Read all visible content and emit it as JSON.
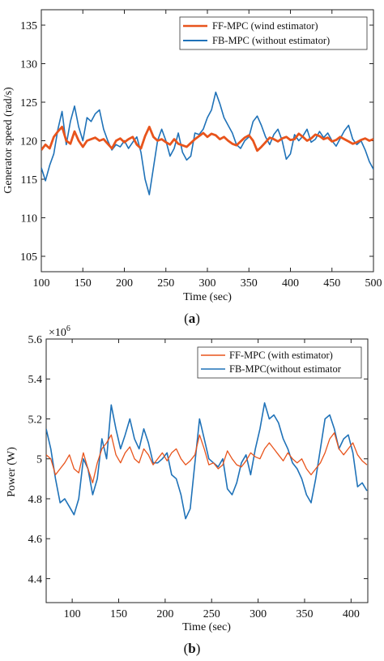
{
  "chart_data": [
    {
      "type": "line",
      "panel_label": "(a)",
      "panel_letter": "a",
      "xlabel": "Time (sec)",
      "ylabel": "Generator speed (rad/s)",
      "xlim": [
        100,
        500
      ],
      "ylim": [
        103,
        137
      ],
      "xticks": [
        100,
        150,
        200,
        250,
        300,
        350,
        400,
        450,
        500
      ],
      "yticks": [
        105,
        110,
        115,
        120,
        125,
        130,
        135
      ],
      "grid": false,
      "legend_position": "top-right",
      "x": [
        100,
        105,
        110,
        115,
        120,
        125,
        130,
        135,
        140,
        145,
        150,
        155,
        160,
        165,
        170,
        175,
        180,
        185,
        190,
        195,
        200,
        205,
        210,
        215,
        220,
        225,
        230,
        235,
        240,
        245,
        250,
        255,
        260,
        265,
        270,
        275,
        280,
        285,
        290,
        295,
        300,
        305,
        310,
        315,
        320,
        325,
        330,
        335,
        340,
        345,
        350,
        355,
        360,
        365,
        370,
        375,
        380,
        385,
        390,
        395,
        400,
        405,
        410,
        415,
        420,
        425,
        430,
        435,
        440,
        445,
        450,
        455,
        460,
        465,
        470,
        475,
        480,
        485,
        490,
        495,
        500
      ],
      "series": [
        {
          "name": "FF-MPC (wind estimator)",
          "color": "#e8541c",
          "values": [
            118.8,
            119.5,
            119.0,
            120.5,
            121.2,
            121.8,
            120.0,
            119.6,
            121.2,
            120.0,
            119.2,
            120.0,
            120.2,
            120.4,
            120.0,
            120.2,
            119.6,
            119.0,
            120.0,
            120.3,
            119.8,
            120.2,
            120.5,
            119.5,
            119.0,
            120.6,
            121.8,
            120.5,
            120.0,
            120.2,
            119.8,
            119.5,
            120.2,
            119.6,
            119.4,
            119.2,
            119.7,
            120.2,
            120.6,
            121.0,
            120.5,
            120.9,
            120.7,
            120.2,
            120.5,
            120.0,
            119.6,
            119.4,
            119.9,
            120.4,
            120.7,
            120.0,
            118.7,
            119.2,
            119.8,
            120.4,
            120.2,
            119.9,
            120.3,
            120.5,
            120.1,
            120.2,
            120.9,
            120.5,
            120.0,
            120.3,
            120.8,
            120.6,
            120.2,
            120.4,
            119.9,
            120.1,
            120.5,
            120.2,
            119.9,
            119.6,
            119.8,
            120.1,
            120.3,
            120.0,
            120.2
          ]
        },
        {
          "name": "FB-MPC (without estimator)",
          "color": "#1f72b8",
          "values": [
            116.5,
            114.8,
            116.8,
            118.3,
            121.5,
            123.8,
            119.5,
            122.5,
            124.5,
            121.8,
            120.0,
            123.0,
            122.5,
            123.5,
            124.0,
            121.5,
            120.0,
            118.8,
            119.5,
            119.2,
            120.0,
            119.0,
            119.8,
            120.5,
            118.5,
            115.0,
            113.0,
            116.5,
            120.0,
            121.5,
            120.0,
            118.0,
            119.0,
            121.0,
            118.5,
            117.5,
            118.0,
            121.0,
            120.8,
            121.5,
            123.0,
            124.0,
            126.3,
            124.8,
            123.0,
            122.0,
            121.0,
            119.5,
            119.0,
            120.0,
            120.5,
            122.5,
            123.2,
            122.0,
            120.5,
            119.5,
            120.8,
            121.5,
            120.0,
            117.6,
            118.3,
            120.8,
            120.0,
            120.6,
            121.5,
            119.8,
            120.2,
            121.2,
            120.4,
            121.0,
            120.0,
            119.3,
            120.3,
            121.3,
            122.0,
            120.2,
            119.5,
            120.0,
            118.8,
            117.3,
            116.3
          ]
        }
      ]
    },
    {
      "type": "line",
      "panel_label": "(b)",
      "panel_letter": "b",
      "xlabel": "Time (sec)",
      "ylabel": "Power (W)",
      "exponent_label": "×10",
      "exponent_sup": "6",
      "xlim": [
        72,
        418
      ],
      "ylim": [
        4.28,
        5.6
      ],
      "xticks": [
        100,
        150,
        200,
        250,
        300,
        350,
        400
      ],
      "yticks": [
        4.4,
        4.6,
        4.8,
        5,
        5.2,
        5.4,
        5.6
      ],
      "grid": false,
      "legend_position": "top-right",
      "x": [
        72,
        77,
        82,
        87,
        92,
        97,
        102,
        107,
        112,
        117,
        122,
        127,
        132,
        137,
        142,
        147,
        152,
        157,
        162,
        167,
        172,
        177,
        182,
        187,
        192,
        197,
        202,
        207,
        212,
        217,
        222,
        227,
        232,
        237,
        242,
        247,
        252,
        257,
        262,
        267,
        272,
        277,
        282,
        287,
        292,
        297,
        302,
        307,
        312,
        317,
        322,
        327,
        332,
        337,
        342,
        347,
        352,
        357,
        362,
        367,
        372,
        377,
        382,
        387,
        392,
        397,
        402,
        407,
        412,
        417
      ],
      "series": [
        {
          "name": "FF-MPC (with estimator)",
          "color": "#e8541c",
          "values": [
            5.02,
            5.0,
            4.92,
            4.95,
            4.98,
            5.02,
            4.95,
            4.93,
            5.03,
            4.95,
            4.88,
            4.98,
            5.05,
            5.08,
            5.12,
            5.02,
            4.98,
            5.03,
            5.06,
            5.0,
            4.98,
            5.05,
            5.02,
            4.97,
            5.0,
            5.03,
            4.99,
            5.03,
            5.05,
            5.0,
            4.97,
            4.99,
            5.02,
            5.12,
            5.05,
            4.97,
            4.98,
            4.95,
            4.97,
            5.04,
            5.0,
            4.97,
            4.96,
            4.99,
            5.03,
            5.01,
            5.0,
            5.05,
            5.08,
            5.05,
            5.02,
            4.99,
            5.03,
            5.0,
            4.98,
            5.0,
            4.95,
            4.92,
            4.95,
            4.98,
            5.03,
            5.1,
            5.13,
            5.05,
            5.02,
            5.05,
            5.08,
            5.02,
            4.99,
            4.97
          ]
        },
        {
          "name": "FB-MPC(without estimator",
          "color": "#1f72b8",
          "values": [
            5.15,
            5.05,
            4.9,
            4.78,
            4.8,
            4.76,
            4.72,
            4.8,
            5.0,
            4.95,
            4.82,
            4.9,
            5.1,
            5.0,
            5.27,
            5.15,
            5.05,
            5.12,
            5.2,
            5.1,
            5.05,
            5.15,
            5.08,
            4.98,
            4.98,
            5.0,
            5.03,
            4.92,
            4.9,
            4.82,
            4.7,
            4.75,
            4.98,
            5.2,
            5.1,
            5.0,
            4.98,
            4.96,
            5.0,
            4.85,
            4.82,
            4.88,
            4.98,
            5.02,
            4.92,
            5.05,
            5.15,
            5.28,
            5.2,
            5.22,
            5.18,
            5.1,
            5.05,
            4.98,
            4.95,
            4.9,
            4.82,
            4.78,
            4.9,
            5.05,
            5.2,
            5.22,
            5.15,
            5.05,
            5.1,
            5.12,
            5.03,
            4.86,
            4.88,
            4.84
          ]
        }
      ]
    }
  ]
}
